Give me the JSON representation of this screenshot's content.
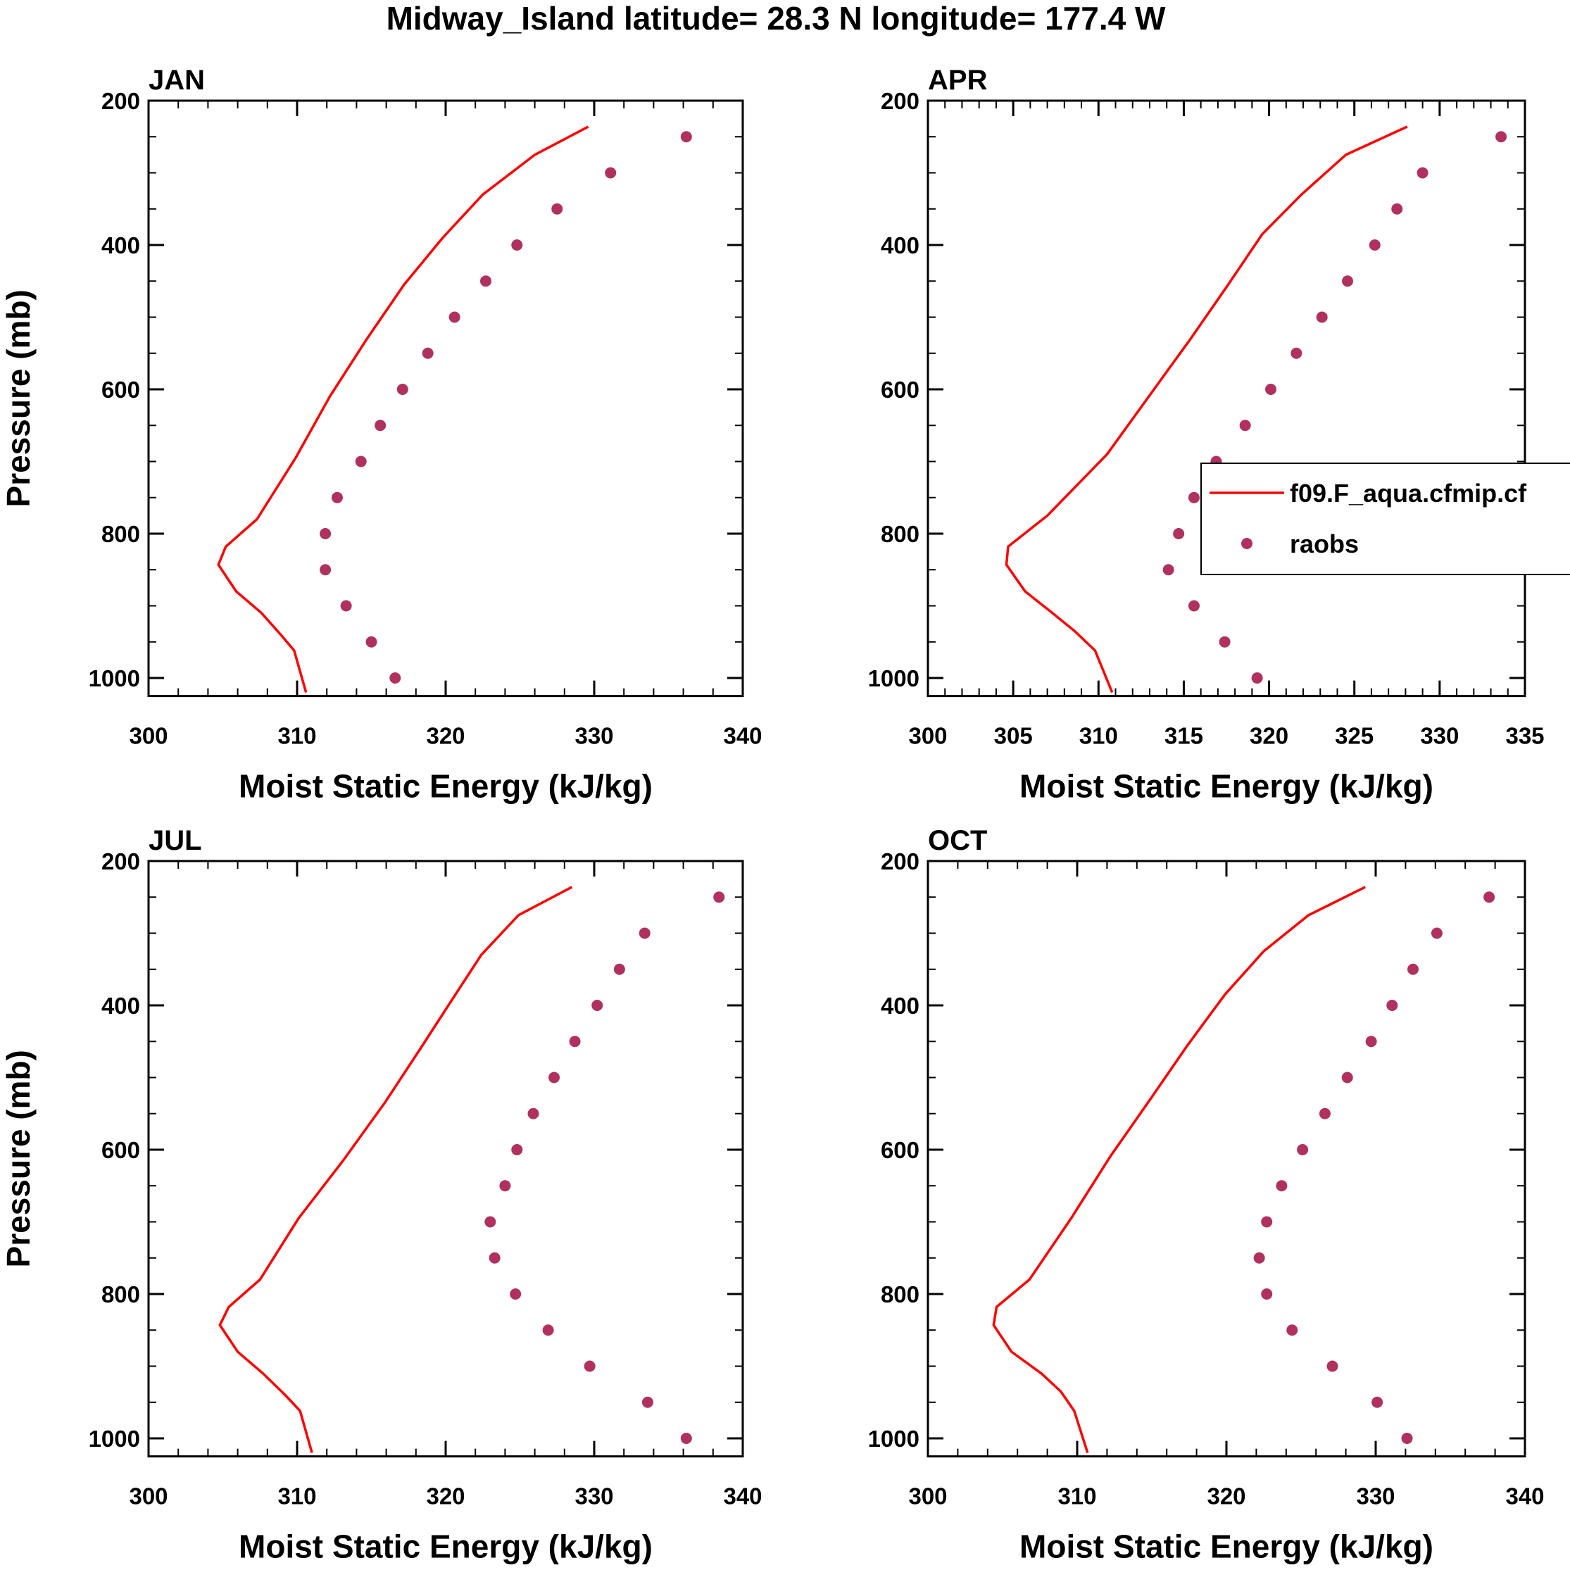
{
  "title": "Midway_Island  latitude= 28.3 N longitude= 177.4 W",
  "legend": {
    "model_label": "f09.F_aqua.cfmip.cf",
    "obs_label": "raobs"
  },
  "colors": {
    "model": "#ff0000",
    "obs": "#b03060",
    "axis": "#000000"
  },
  "chart_data": [
    {
      "type": "line",
      "title": "JAN",
      "xlabel": "Moist Static Energy (kJ/kg)",
      "ylabel": "Pressure (mb)",
      "xlim": [
        300,
        340
      ],
      "xticks": [
        300,
        310,
        320,
        330,
        340
      ],
      "xtick_labels": [
        "300",
        "310",
        "320",
        "330",
        "340"
      ],
      "ylim": [
        200,
        1025
      ],
      "yticks": [
        200,
        400,
        600,
        800,
        1000
      ],
      "ytick_labels": [
        "200",
        "400",
        "600",
        "800",
        "1000"
      ],
      "series": [
        {
          "name": "f09.F_aqua.cfmip.cf",
          "style": "line",
          "x": [
            329.6,
            326.0,
            322.5,
            319.8,
            317.2,
            314.7,
            312.2,
            309.9,
            307.3,
            305.2,
            304.7,
            305.9,
            307.6,
            308.9,
            309.8,
            310.6
          ],
          "y": [
            236,
            275,
            330,
            390,
            455,
            530,
            610,
            695,
            780,
            818,
            843,
            880,
            910,
            940,
            962,
            1020
          ]
        },
        {
          "name": "raobs",
          "style": "markers",
          "x": [
            336.2,
            331.1,
            327.5,
            324.8,
            322.7,
            320.6,
            318.8,
            317.1,
            315.6,
            314.3,
            312.7,
            311.9,
            311.9,
            313.3,
            315.0,
            316.6
          ],
          "y": [
            250,
            300,
            350,
            400,
            450,
            500,
            550,
            600,
            650,
            700,
            750,
            800,
            850,
            900,
            950,
            1000
          ]
        }
      ]
    },
    {
      "type": "line",
      "title": "APR",
      "xlabel": "Moist Static Energy (kJ/kg)",
      "ylabel": "",
      "xlim": [
        300,
        335
      ],
      "xticks": [
        300,
        305,
        310,
        315,
        320,
        325,
        330,
        335
      ],
      "xtick_labels": [
        "300",
        "305",
        "310",
        "315",
        "320",
        "325",
        "330",
        "335"
      ],
      "ylim": [
        200,
        1025
      ],
      "yticks": [
        200,
        400,
        600,
        800,
        1000
      ],
      "ytick_labels": [
        "200",
        "400",
        "600",
        "800",
        "1000"
      ],
      "legend": true,
      "series": [
        {
          "name": "f09.F_aqua.cfmip.cf",
          "style": "line",
          "x": [
            328.1,
            324.5,
            321.9,
            319.6,
            317.6,
            315.4,
            313.1,
            310.5,
            307.0,
            304.7,
            304.6,
            305.7,
            307.3,
            308.6,
            309.8,
            310.8
          ],
          "y": [
            236,
            275,
            330,
            385,
            455,
            530,
            605,
            690,
            775,
            818,
            843,
            880,
            910,
            935,
            962,
            1020
          ]
        },
        {
          "name": "raobs",
          "style": "markers",
          "x": [
            333.6,
            329.0,
            327.5,
            326.2,
            324.6,
            323.1,
            321.6,
            320.1,
            318.6,
            316.9,
            315.6,
            314.7,
            314.1,
            315.6,
            317.4,
            319.3
          ],
          "y": [
            250,
            300,
            350,
            400,
            450,
            500,
            550,
            600,
            650,
            700,
            750,
            800,
            850,
            900,
            950,
            1000
          ]
        }
      ]
    },
    {
      "type": "line",
      "title": "JUL",
      "xlabel": "Moist Static Energy (kJ/kg)",
      "ylabel": "Pressure (mb)",
      "xlim": [
        300,
        340
      ],
      "xticks": [
        300,
        310,
        320,
        330,
        340
      ],
      "xtick_labels": [
        "300",
        "310",
        "320",
        "330",
        "340"
      ],
      "ylim": [
        200,
        1025
      ],
      "yticks": [
        200,
        400,
        600,
        800,
        1000
      ],
      "ytick_labels": [
        "200",
        "400",
        "600",
        "800",
        "1000"
      ],
      "series": [
        {
          "name": "f09.F_aqua.cfmip.cf",
          "style": "line",
          "x": [
            328.5,
            324.9,
            322.4,
            320.5,
            318.3,
            315.9,
            313.1,
            310.1,
            307.5,
            305.4,
            304.8,
            306.0,
            307.7,
            309.2,
            310.2,
            311.0
          ],
          "y": [
            236,
            275,
            330,
            390,
            460,
            535,
            615,
            695,
            780,
            818,
            843,
            880,
            910,
            940,
            962,
            1020
          ]
        },
        {
          "name": "raobs",
          "style": "markers",
          "x": [
            338.4,
            333.4,
            331.7,
            330.2,
            328.7,
            327.3,
            325.9,
            324.8,
            324.0,
            323.0,
            323.3,
            324.7,
            326.9,
            329.7,
            333.6,
            336.2
          ],
          "y": [
            250,
            300,
            350,
            400,
            450,
            500,
            550,
            600,
            650,
            700,
            750,
            800,
            850,
            900,
            950,
            1000
          ]
        }
      ]
    },
    {
      "type": "line",
      "title": "OCT",
      "xlabel": "Moist Static Energy (kJ/kg)",
      "ylabel": "",
      "xlim": [
        300,
        340
      ],
      "xticks": [
        300,
        310,
        320,
        330,
        340
      ],
      "xtick_labels": [
        "300",
        "310",
        "320",
        "330",
        "340"
      ],
      "ylim": [
        200,
        1025
      ],
      "yticks": [
        200,
        400,
        600,
        800,
        1000
      ],
      "ytick_labels": [
        "200",
        "400",
        "600",
        "800",
        "1000"
      ],
      "series": [
        {
          "name": "f09.F_aqua.cfmip.cf",
          "style": "line",
          "x": [
            329.3,
            325.5,
            322.5,
            319.9,
            317.4,
            314.9,
            312.2,
            309.6,
            306.8,
            304.6,
            304.4,
            305.6,
            307.6,
            308.9,
            309.8,
            310.7
          ],
          "y": [
            236,
            275,
            325,
            385,
            455,
            530,
            610,
            695,
            780,
            818,
            843,
            880,
            910,
            935,
            962,
            1020
          ]
        },
        {
          "name": "raobs",
          "style": "markers",
          "x": [
            337.6,
            334.1,
            332.5,
            331.1,
            329.7,
            328.1,
            326.6,
            325.1,
            323.7,
            322.7,
            322.2,
            322.7,
            324.4,
            327.1,
            330.1,
            332.1
          ],
          "y": [
            250,
            300,
            350,
            400,
            450,
            500,
            550,
            600,
            650,
            700,
            750,
            800,
            850,
            900,
            950,
            1000
          ]
        }
      ]
    }
  ]
}
